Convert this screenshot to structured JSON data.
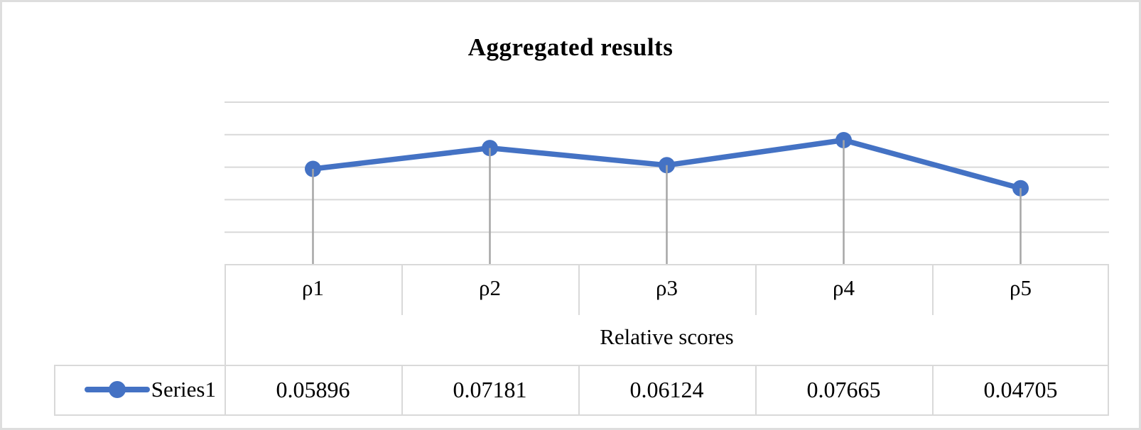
{
  "window": {
    "background": "#ffffff",
    "frame_border_color": "#dedede"
  },
  "chart_data": {
    "type": "line",
    "title": "Aggregated results",
    "categories": [
      "ρ1",
      "ρ2",
      "ρ3",
      "ρ4",
      "ρ5"
    ],
    "series": [
      {
        "name": "Series1",
        "values": [
          0.05896,
          0.07181,
          0.06124,
          0.07665,
          0.04705
        ],
        "display_values": [
          "0.05896",
          "0.07181",
          "0.06124",
          "0.07665",
          "0.04705"
        ],
        "color": "#4472c4",
        "marker": "circle"
      }
    ],
    "xlabel": "Relative scores",
    "ylabel": "",
    "ylim": [
      0,
      0.1
    ],
    "y_major_unit": 0.02,
    "y_axis_labels_shown": false,
    "grid": true,
    "gridline_color": "#d9d9d9",
    "drop_lines": true,
    "drop_line_color": "#a6a6a6",
    "data_table": true,
    "table_border_color": "#d9d9d9",
    "legend_position": "data-table-left"
  }
}
